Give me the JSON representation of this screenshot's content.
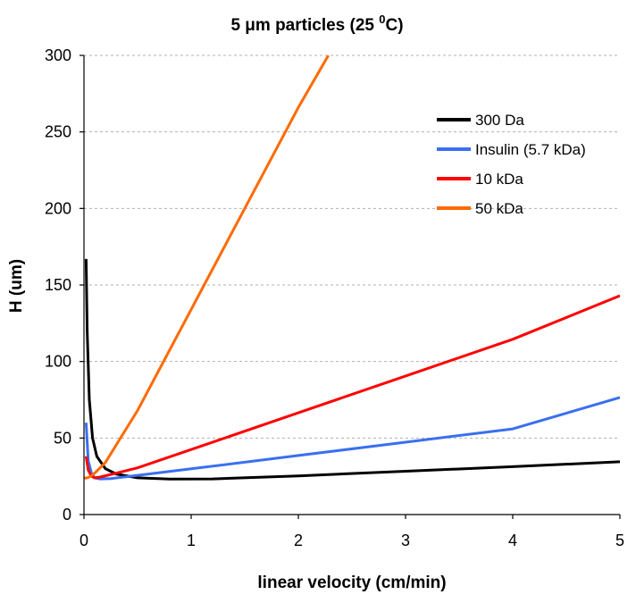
{
  "chart_data": {
    "type": "line",
    "title": {
      "main": "5 μm particles (25 ",
      "superscript": "0",
      "tail": "C)"
    },
    "xlabel": "linear velocity (cm/min)",
    "ylabel": "H (um)",
    "xlim": [
      0,
      5
    ],
    "ylim": [
      0,
      300
    ],
    "x_ticks": [
      "0",
      "1",
      "2",
      "3",
      "4",
      "5"
    ],
    "y_ticks": [
      "0",
      "50",
      "100",
      "150",
      "200",
      "250",
      "300"
    ],
    "grid": "horizontal dashed",
    "legend_position": "top-right",
    "series": [
      {
        "name": "300 Da",
        "color": "#000000",
        "points": [
          [
            0.02,
            167
          ],
          [
            0.03,
            120
          ],
          [
            0.05,
            75
          ],
          [
            0.08,
            50
          ],
          [
            0.12,
            38
          ],
          [
            0.2,
            30
          ],
          [
            0.3,
            26.5
          ],
          [
            0.5,
            24
          ],
          [
            0.8,
            23.2
          ],
          [
            1.2,
            23.3
          ],
          [
            2,
            25.3
          ],
          [
            3,
            28.3
          ],
          [
            4,
            31.3
          ],
          [
            5,
            34.5
          ]
        ]
      },
      {
        "name": "Insulin (5.7 kDa)",
        "color": "#3a6ff0",
        "points": [
          [
            0.02,
            60
          ],
          [
            0.04,
            35
          ],
          [
            0.07,
            27
          ],
          [
            0.1,
            24
          ],
          [
            0.15,
            23.3
          ],
          [
            0.25,
            23.5
          ],
          [
            0.5,
            25.6
          ],
          [
            1,
            29.9
          ],
          [
            2,
            38.6
          ],
          [
            3,
            47.3
          ],
          [
            4,
            56
          ],
          [
            5,
            76.5
          ]
        ]
      },
      {
        "name": "10 kDa",
        "color": "#ff0000",
        "points": [
          [
            0.02,
            38
          ],
          [
            0.04,
            29
          ],
          [
            0.07,
            25
          ],
          [
            0.1,
            24
          ],
          [
            0.15,
            24.5
          ],
          [
            0.3,
            27
          ],
          [
            0.5,
            30.5
          ],
          [
            1,
            42.5
          ],
          [
            2,
            66.5
          ],
          [
            3,
            90.5
          ],
          [
            4,
            114.5
          ],
          [
            5,
            143
          ]
        ]
      },
      {
        "name": "50 kDa",
        "color": "#ff6a00",
        "points": [
          [
            0,
            24
          ],
          [
            0.02,
            23.8
          ],
          [
            0.05,
            24.5
          ],
          [
            0.1,
            27
          ],
          [
            0.2,
            34
          ],
          [
            0.5,
            68
          ],
          [
            1,
            134
          ],
          [
            1.5,
            200
          ],
          [
            2,
            266
          ],
          [
            2.28,
            300
          ]
        ]
      }
    ]
  }
}
